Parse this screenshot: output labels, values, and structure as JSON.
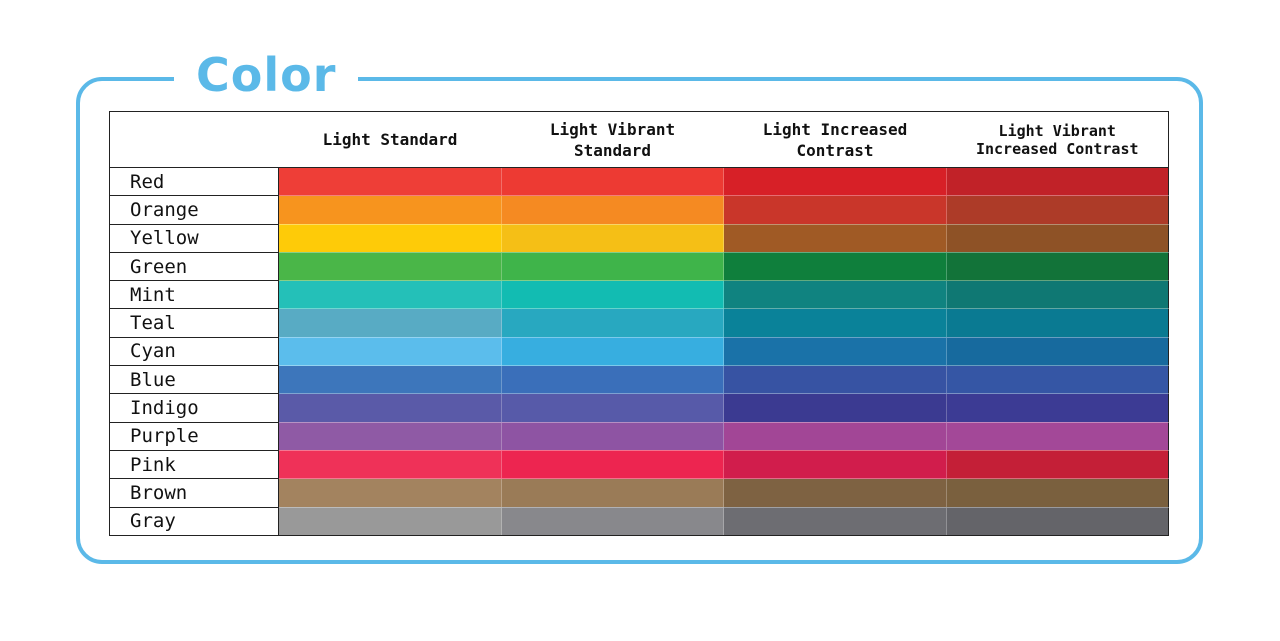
{
  "title": "Color",
  "columns": [
    "Light Standard",
    "Light Vibrant\nStandard",
    "Light Increased\nContrast",
    "Light Vibrant\nIncreased Contrast"
  ],
  "rows": [
    {
      "name": "Red",
      "colors": [
        "#ee3e37",
        "#ed3a33",
        "#d72027",
        "#c12228"
      ]
    },
    {
      "name": "Orange",
      "colors": [
        "#f7941e",
        "#f58a22",
        "#c9362a",
        "#ad3b28"
      ]
    },
    {
      "name": "Yellow",
      "colors": [
        "#fecb08",
        "#f5bf16",
        "#a05a25",
        "#8e5226"
      ]
    },
    {
      "name": "Green",
      "colors": [
        "#4ab648",
        "#3fb44a",
        "#0f7f3c",
        "#127339"
      ]
    },
    {
      "name": "Mint",
      "colors": [
        "#24c0b8",
        "#12bcb2",
        "#108380",
        "#0f7873"
      ]
    },
    {
      "name": "Teal",
      "colors": [
        "#58abc4",
        "#28a8c0",
        "#0a8299",
        "#0a7a92"
      ]
    },
    {
      "name": "Cyan",
      "colors": [
        "#5bbdec",
        "#37aee0",
        "#1a72a8",
        "#176a9e"
      ]
    },
    {
      "name": "Blue",
      "colors": [
        "#3d76bb",
        "#3a6fba",
        "#3753a3",
        "#3556a5"
      ]
    },
    {
      "name": "Indigo",
      "colors": [
        "#5a5aa8",
        "#575aa9",
        "#3b3a91",
        "#3c3b94"
      ]
    },
    {
      "name": "Purple",
      "colors": [
        "#8f5aa5",
        "#8e54a3",
        "#a24696",
        "#a34898"
      ]
    },
    {
      "name": "Pink",
      "colors": [
        "#ef3158",
        "#ed2550",
        "#d11d4c",
        "#c41f37"
      ]
    },
    {
      "name": "Brown",
      "colors": [
        "#a3835f",
        "#9a7b57",
        "#7e6242",
        "#7a603e"
      ]
    },
    {
      "name": "Gray",
      "colors": [
        "#999999",
        "#88888c",
        "#6d6d72",
        "#646469"
      ]
    }
  ]
}
